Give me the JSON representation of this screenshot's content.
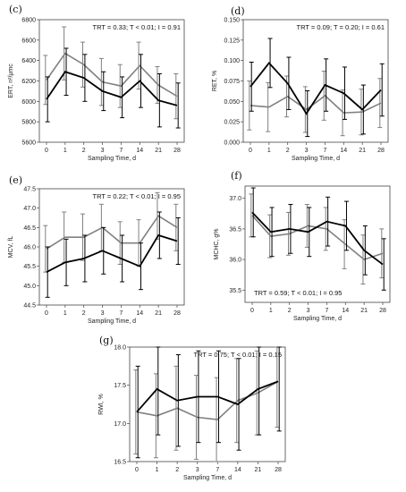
{
  "chart_data": [
    {
      "type": "line",
      "panel_label": "(c)",
      "annotation": "TRT = 0.33; T < 0.01; I = 0.91",
      "xlabel": "Sampling Time, d",
      "ylabel": "ERT, n²/μmc",
      "categories": [
        "0",
        "1",
        "2",
        "3",
        "7",
        "14",
        "21",
        "28"
      ],
      "ylim": [
        5600,
        6800
      ],
      "yticks": [
        "5600",
        "5800",
        "6000",
        "6200",
        "6400",
        "6600",
        "6800"
      ],
      "series": [
        {
          "color": "#808080",
          "values": [
            6210,
            6470,
            6360,
            6190,
            6150,
            6350,
            6160,
            6050
          ],
          "err": [
            240,
            260,
            220,
            230,
            210,
            230,
            180,
            220
          ]
        },
        {
          "color": "#000000",
          "values": [
            6020,
            6290,
            6230,
            6100,
            6040,
            6200,
            6010,
            5960
          ],
          "err": [
            220,
            230,
            230,
            190,
            200,
            260,
            260,
            220
          ]
        }
      ]
    },
    {
      "type": "line",
      "panel_label": "(d)",
      "annotation": "TRT = 0.09; T = 0.20; I = 0.61",
      "xlabel": "Sampling Time, d",
      "ylabel": "RET, %",
      "categories": [
        "0",
        "1",
        "2",
        "3",
        "7",
        "14",
        "21",
        "28"
      ],
      "ylim": [
        0,
        0.15
      ],
      "yticks": [
        "0.000",
        "0.025",
        "0.050",
        "0.075",
        "0.100",
        "0.125",
        "0.150"
      ],
      "series": [
        {
          "color": "#808080",
          "values": [
            0.045,
            0.043,
            0.056,
            0.04,
            0.057,
            0.036,
            0.037,
            0.048
          ],
          "err": [
            0.03,
            0.03,
            0.025,
            0.028,
            0.03,
            0.028,
            0.028,
            0.03
          ]
        },
        {
          "color": "#000000",
          "values": [
            0.068,
            0.097,
            0.072,
            0.035,
            0.07,
            0.06,
            0.04,
            0.064
          ],
          "err": [
            0.03,
            0.03,
            0.032,
            0.028,
            0.032,
            0.032,
            0.03,
            0.032
          ]
        }
      ]
    },
    {
      "type": "line",
      "panel_label": "(e)",
      "annotation": "TRT = 0.22; T < 0.01; I = 0.95",
      "xlabel": "Sampling Time, d",
      "ylabel": "MCV, fL",
      "categories": [
        "0",
        "1",
        "2",
        "3",
        "7",
        "14",
        "21",
        "28"
      ],
      "ylim": [
        44.5,
        47.5
      ],
      "yticks": [
        "44.5",
        "45.0",
        "45.5",
        "46.0",
        "46.5",
        "47.0",
        "47.5"
      ],
      "series": [
        {
          "color": "#808080",
          "values": [
            45.95,
            46.25,
            46.25,
            46.5,
            46.1,
            46.1,
            46.8,
            46.5
          ],
          "err": [
            0.6,
            0.65,
            0.6,
            0.6,
            0.55,
            0.6,
            0.6,
            0.6
          ]
        },
        {
          "color": "#000000",
          "values": [
            45.35,
            45.6,
            45.7,
            45.9,
            45.7,
            45.5,
            46.3,
            46.15
          ],
          "err": [
            0.65,
            0.6,
            0.6,
            0.6,
            0.6,
            0.6,
            0.6,
            0.6
          ]
        }
      ]
    },
    {
      "type": "line",
      "panel_label": "(f)",
      "annotation": "TRT = 0.59; T < 0.01; I = 0.95",
      "xlabel": "Sampling Time, d",
      "ylabel": "MCHC, g%",
      "categories": [
        "0",
        "1",
        "2",
        "3",
        "7",
        "14",
        "21",
        "28"
      ],
      "ylim": [
        35.3,
        37.2
      ],
      "yticks": [
        "35.5",
        "36.0",
        "36.5",
        "37.0"
      ],
      "series": [
        {
          "color": "#808080",
          "values": [
            36.72,
            36.38,
            36.42,
            36.55,
            36.5,
            36.25,
            36.0,
            36.1
          ],
          "err": [
            0.35,
            0.35,
            0.35,
            0.35,
            0.35,
            0.4,
            0.4,
            0.4
          ]
        },
        {
          "color": "#000000",
          "values": [
            36.77,
            36.45,
            36.5,
            36.45,
            36.62,
            36.55,
            36.15,
            35.92
          ],
          "err": [
            0.4,
            0.4,
            0.4,
            0.4,
            0.4,
            0.4,
            0.4,
            0.42
          ]
        }
      ]
    },
    {
      "type": "line",
      "panel_label": "(g)",
      "annotation": "TRT = 0.75; T < 0.01; I = 0.15",
      "xlabel": "Sampling Time, d",
      "ylabel": "RWI, %",
      "categories": [
        "0",
        "1",
        "2",
        "3",
        "7",
        "14",
        "21",
        "28"
      ],
      "ylim": [
        16.5,
        18.0
      ],
      "yticks": [
        "16.5",
        "17.0",
        "17.5",
        "18.0"
      ],
      "series": [
        {
          "color": "#808080",
          "values": [
            17.15,
            17.1,
            17.2,
            17.08,
            17.05,
            17.3,
            17.4,
            17.55
          ],
          "err": [
            0.55,
            0.55,
            0.55,
            0.55,
            0.55,
            0.55,
            0.55,
            0.6
          ]
        },
        {
          "color": "#000000",
          "values": [
            17.15,
            17.45,
            17.3,
            17.35,
            17.35,
            17.25,
            17.45,
            17.55
          ],
          "err": [
            0.6,
            0.6,
            0.6,
            0.6,
            0.6,
            0.6,
            0.6,
            0.65
          ]
        }
      ]
    }
  ]
}
